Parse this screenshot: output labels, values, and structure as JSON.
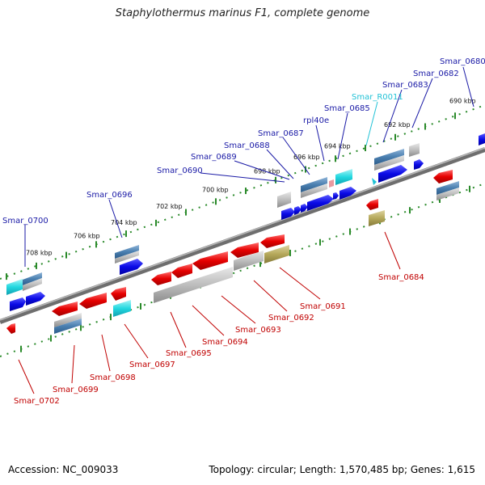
{
  "title": "Staphylothermus marinus F1, complete genome",
  "footer": {
    "accession": "Accession: NC_009033",
    "stats": "Topology: circular; Length: 1,570,485 bp; Genes: 1,615"
  },
  "colors": {
    "forward_label": "#1a1aa6",
    "reverse_label": "#c00000",
    "rna_label": "#22c2d6",
    "cds_forward": "#0a0ae6",
    "cds_reverse": "#e60000",
    "gene_blue": "#4a7fb0",
    "gene_gray": "#b8b8b8",
    "gene_olive": "#b5a85a",
    "rna_cyan": "#22d8e0",
    "backbone": "#888888",
    "tick_dots": "#2a8a2a"
  },
  "kbp_ticks": [
    "690 kbp",
    "692 kbp",
    "694 kbp",
    "696 kbp",
    "698 kbp",
    "700 kbp",
    "702 kbp",
    "704 kbp",
    "706 kbp",
    "708 kbp"
  ],
  "forward_labels": [
    "Smar_0680",
    "Smar_0682",
    "Smar_0683",
    "Smar_R0011",
    "Smar_0685",
    "rpl40e",
    "Smar_0687",
    "Smar_0688",
    "Smar_0689",
    "Smar_0690",
    "Smar_0696",
    "Smar_0700"
  ],
  "reverse_labels": [
    "Smar_0684",
    "Smar_0691",
    "Smar_0692",
    "Smar_0693",
    "Smar_0694",
    "Smar_0695",
    "Smar_0697",
    "Smar_0698",
    "Smar_0699",
    "Smar_0702"
  ]
}
